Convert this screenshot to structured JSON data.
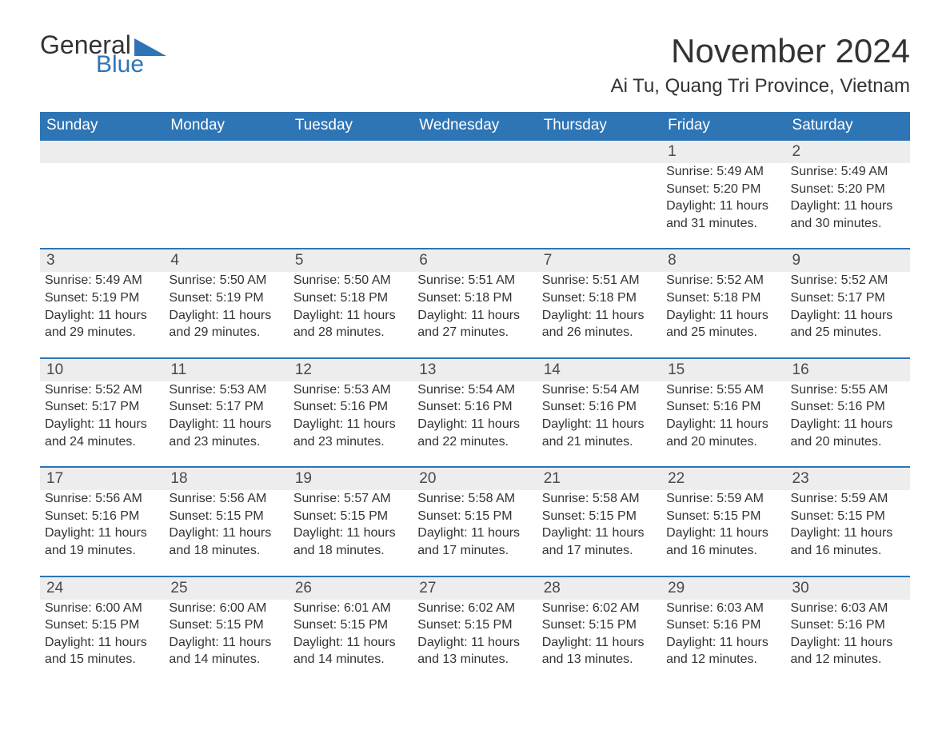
{
  "logo": {
    "part1": "General",
    "part2": "Blue"
  },
  "title": "November 2024",
  "location": "Ai Tu, Quang Tri Province, Vietnam",
  "colors": {
    "header_bg": "#2e75b6",
    "header_text": "#ffffff",
    "row_border": "#2e75b6",
    "daynum_bg": "#ededed",
    "body_text": "#333333",
    "logo_blue": "#2e75b6"
  },
  "day_headers": [
    "Sunday",
    "Monday",
    "Tuesday",
    "Wednesday",
    "Thursday",
    "Friday",
    "Saturday"
  ],
  "weeks": [
    [
      null,
      null,
      null,
      null,
      null,
      {
        "n": "1",
        "sunrise": "5:49 AM",
        "sunset": "5:20 PM",
        "daylight": "11 hours and 31 minutes."
      },
      {
        "n": "2",
        "sunrise": "5:49 AM",
        "sunset": "5:20 PM",
        "daylight": "11 hours and 30 minutes."
      }
    ],
    [
      {
        "n": "3",
        "sunrise": "5:49 AM",
        "sunset": "5:19 PM",
        "daylight": "11 hours and 29 minutes."
      },
      {
        "n": "4",
        "sunrise": "5:50 AM",
        "sunset": "5:19 PM",
        "daylight": "11 hours and 29 minutes."
      },
      {
        "n": "5",
        "sunrise": "5:50 AM",
        "sunset": "5:18 PM",
        "daylight": "11 hours and 28 minutes."
      },
      {
        "n": "6",
        "sunrise": "5:51 AM",
        "sunset": "5:18 PM",
        "daylight": "11 hours and 27 minutes."
      },
      {
        "n": "7",
        "sunrise": "5:51 AM",
        "sunset": "5:18 PM",
        "daylight": "11 hours and 26 minutes."
      },
      {
        "n": "8",
        "sunrise": "5:52 AM",
        "sunset": "5:18 PM",
        "daylight": "11 hours and 25 minutes."
      },
      {
        "n": "9",
        "sunrise": "5:52 AM",
        "sunset": "5:17 PM",
        "daylight": "11 hours and 25 minutes."
      }
    ],
    [
      {
        "n": "10",
        "sunrise": "5:52 AM",
        "sunset": "5:17 PM",
        "daylight": "11 hours and 24 minutes."
      },
      {
        "n": "11",
        "sunrise": "5:53 AM",
        "sunset": "5:17 PM",
        "daylight": "11 hours and 23 minutes."
      },
      {
        "n": "12",
        "sunrise": "5:53 AM",
        "sunset": "5:16 PM",
        "daylight": "11 hours and 23 minutes."
      },
      {
        "n": "13",
        "sunrise": "5:54 AM",
        "sunset": "5:16 PM",
        "daylight": "11 hours and 22 minutes."
      },
      {
        "n": "14",
        "sunrise": "5:54 AM",
        "sunset": "5:16 PM",
        "daylight": "11 hours and 21 minutes."
      },
      {
        "n": "15",
        "sunrise": "5:55 AM",
        "sunset": "5:16 PM",
        "daylight": "11 hours and 20 minutes."
      },
      {
        "n": "16",
        "sunrise": "5:55 AM",
        "sunset": "5:16 PM",
        "daylight": "11 hours and 20 minutes."
      }
    ],
    [
      {
        "n": "17",
        "sunrise": "5:56 AM",
        "sunset": "5:16 PM",
        "daylight": "11 hours and 19 minutes."
      },
      {
        "n": "18",
        "sunrise": "5:56 AM",
        "sunset": "5:15 PM",
        "daylight": "11 hours and 18 minutes."
      },
      {
        "n": "19",
        "sunrise": "5:57 AM",
        "sunset": "5:15 PM",
        "daylight": "11 hours and 18 minutes."
      },
      {
        "n": "20",
        "sunrise": "5:58 AM",
        "sunset": "5:15 PM",
        "daylight": "11 hours and 17 minutes."
      },
      {
        "n": "21",
        "sunrise": "5:58 AM",
        "sunset": "5:15 PM",
        "daylight": "11 hours and 17 minutes."
      },
      {
        "n": "22",
        "sunrise": "5:59 AM",
        "sunset": "5:15 PM",
        "daylight": "11 hours and 16 minutes."
      },
      {
        "n": "23",
        "sunrise": "5:59 AM",
        "sunset": "5:15 PM",
        "daylight": "11 hours and 16 minutes."
      }
    ],
    [
      {
        "n": "24",
        "sunrise": "6:00 AM",
        "sunset": "5:15 PM",
        "daylight": "11 hours and 15 minutes."
      },
      {
        "n": "25",
        "sunrise": "6:00 AM",
        "sunset": "5:15 PM",
        "daylight": "11 hours and 14 minutes."
      },
      {
        "n": "26",
        "sunrise": "6:01 AM",
        "sunset": "5:15 PM",
        "daylight": "11 hours and 14 minutes."
      },
      {
        "n": "27",
        "sunrise": "6:02 AM",
        "sunset": "5:15 PM",
        "daylight": "11 hours and 13 minutes."
      },
      {
        "n": "28",
        "sunrise": "6:02 AM",
        "sunset": "5:15 PM",
        "daylight": "11 hours and 13 minutes."
      },
      {
        "n": "29",
        "sunrise": "6:03 AM",
        "sunset": "5:16 PM",
        "daylight": "11 hours and 12 minutes."
      },
      {
        "n": "30",
        "sunrise": "6:03 AM",
        "sunset": "5:16 PM",
        "daylight": "11 hours and 12 minutes."
      }
    ]
  ],
  "labels": {
    "sunrise": "Sunrise:",
    "sunset": "Sunset:",
    "daylight": "Daylight:"
  }
}
